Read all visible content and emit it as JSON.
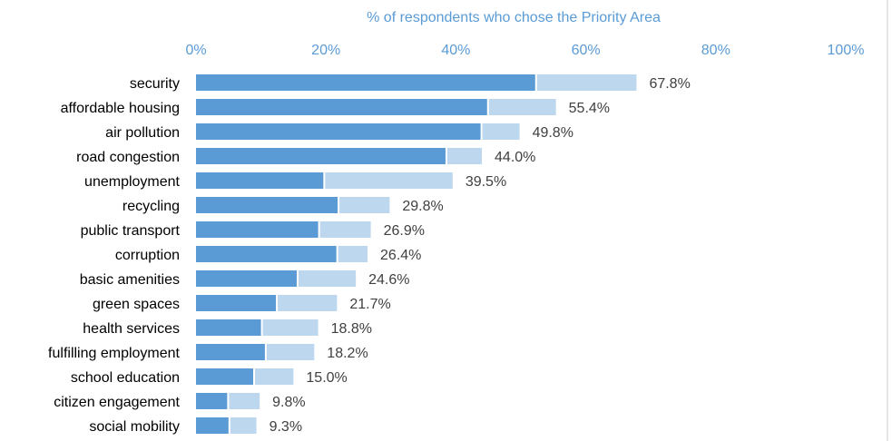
{
  "chart_data": {
    "type": "bar",
    "orientation": "horizontal",
    "stacked": true,
    "title": "% of respondents who chose the Priority Area",
    "xlim": [
      0,
      100
    ],
    "xticks": [
      "0%",
      "20%",
      "40%",
      "60%",
      "80%",
      "100%"
    ],
    "grid": false,
    "legend": "none",
    "categories": [
      "security",
      "affordable housing",
      "air pollution",
      "road congestion",
      "unemployment",
      "recycling",
      "public transport",
      "corruption",
      "basic amenities",
      "green spaces",
      "health services",
      "fulfilling employment",
      "school education",
      "citizen engagement",
      "social mobility"
    ],
    "series": [
      {
        "values": [
          52.2,
          44.8,
          43.8,
          38.4,
          19.6,
          21.8,
          18.8,
          21.6,
          15.5,
          12.3,
          10.0,
          10.6,
          8.8,
          4.8,
          5.0
        ]
      },
      {
        "values": [
          15.6,
          10.6,
          6.0,
          5.6,
          19.9,
          8.0,
          8.1,
          4.8,
          9.1,
          9.4,
          8.8,
          7.6,
          6.2,
          5.0,
          4.3
        ]
      }
    ],
    "totals": [
      67.8,
      55.4,
      49.8,
      44.0,
      39.5,
      29.8,
      26.9,
      26.4,
      24.6,
      21.7,
      18.8,
      18.2,
      15.0,
      9.8,
      9.3
    ],
    "total_labels": [
      "67.8%",
      "55.4%",
      "49.8%",
      "44.0%",
      "39.5%",
      "29.8%",
      "26.9%",
      "26.4%",
      "24.6%",
      "21.7%",
      "18.8%",
      "18.2%",
      "15.0%",
      "9.8%",
      "9.3%"
    ],
    "colors": {
      "primary": "#5b9bd5",
      "secondary": "#bdd7ee",
      "axis_text": "#5b9bd5",
      "label_text": "#000000",
      "value_text": "#404040"
    }
  }
}
